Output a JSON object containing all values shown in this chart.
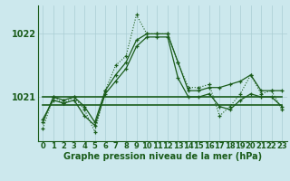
{
  "title": "Graphe pression niveau de la mer (hPa)",
  "hours": [
    0,
    1,
    2,
    3,
    4,
    5,
    6,
    7,
    8,
    9,
    10,
    11,
    12,
    13,
    14,
    15,
    16,
    17,
    18,
    19,
    20,
    21,
    22,
    23
  ],
  "line_main": [
    1020.5,
    1021.0,
    1020.9,
    1021.0,
    1020.8,
    1020.45,
    1021.1,
    1021.5,
    1021.65,
    1022.3,
    1022.0,
    1022.0,
    1022.0,
    1021.55,
    1021.15,
    1021.15,
    1021.2,
    1020.7,
    1020.85,
    1021.05,
    1021.35,
    1021.05,
    1021.1,
    1020.8
  ],
  "line_solid1": [
    1020.6,
    1021.0,
    1020.95,
    1021.0,
    1020.85,
    1020.6,
    1021.1,
    1021.35,
    1021.55,
    1021.9,
    1022.0,
    1022.0,
    1022.0,
    1021.55,
    1021.1,
    1021.1,
    1021.15,
    1021.15,
    1021.2,
    1021.25,
    1021.35,
    1021.1,
    1021.1,
    1021.1
  ],
  "line_solid2": [
    1020.65,
    1020.95,
    1020.9,
    1020.95,
    1020.7,
    1020.55,
    1021.05,
    1021.25,
    1021.45,
    1021.8,
    1021.95,
    1021.95,
    1021.95,
    1021.3,
    1021.0,
    1021.0,
    1021.05,
    1020.85,
    1020.8,
    1020.95,
    1021.05,
    1021.0,
    1021.0,
    1020.85
  ],
  "line_flat_hi": [
    1021.0,
    1021.0,
    1021.0,
    1021.0,
    1021.0,
    1021.0,
    1021.0,
    1021.0,
    1021.0,
    1021.0,
    1021.0,
    1021.0,
    1021.0,
    1021.0,
    1021.0,
    1021.0,
    1021.0,
    1021.0,
    1021.0,
    1021.0,
    1021.0,
    1021.0,
    1021.0,
    1021.0
  ],
  "line_flat_lo": [
    1020.88,
    1020.88,
    1020.88,
    1020.88,
    1020.88,
    1020.88,
    1020.88,
    1020.88,
    1020.88,
    1020.88,
    1020.88,
    1020.88,
    1020.88,
    1020.88,
    1020.88,
    1020.88,
    1020.88,
    1020.88,
    1020.88,
    1020.88,
    1020.88,
    1020.88,
    1020.88,
    1020.88
  ],
  "ylim_min": 1020.3,
  "ylim_max": 1022.45,
  "yticks": [
    1021,
    1022
  ],
  "bg_color": "#cce8ed",
  "line_color": "#1a5c1a",
  "grid_color": "#aacdd4",
  "title_fontsize": 7.0,
  "tick_fontsize": 6.0,
  "ytick_fontsize": 7.0
}
